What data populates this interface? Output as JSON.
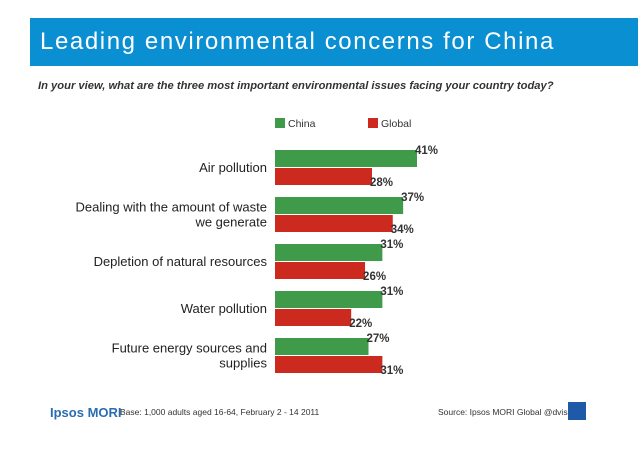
{
  "header": {
    "title": "Leading environmental concerns for China",
    "subtitle": "In your view, what are the three most important environmental issues facing your country today?"
  },
  "chart_data": {
    "type": "bar",
    "orientation": "horizontal",
    "categories": [
      [
        "Air pollution"
      ],
      [
        "Dealing with the amount of waste",
        "we generate"
      ],
      [
        "Depletion of natural resources"
      ],
      [
        "Water pollution"
      ],
      [
        "Future energy sources and",
        "supplies"
      ]
    ],
    "series": [
      {
        "name": "China",
        "values": [
          41,
          37,
          31,
          31,
          27
        ],
        "labels": [
          "41%",
          "37%",
          "31%",
          "31%",
          "27%"
        ],
        "color": "#3f9a4a"
      },
      {
        "name": "Global",
        "values": [
          28,
          34,
          26,
          22,
          31
        ],
        "labels": [
          "28%",
          "34%",
          "26%",
          "22%",
          "31%"
        ],
        "color": "#cc2a1f"
      }
    ],
    "xlim": [
      0,
      45
    ],
    "legend_position": "top",
    "grid": false
  },
  "footer": {
    "logo": "Ipsos MORI",
    "base": "Base: 1,000 adults aged 16-64, February 2 - 14 2011",
    "source": "Source: Ipsos MORI Global @dvisor"
  }
}
